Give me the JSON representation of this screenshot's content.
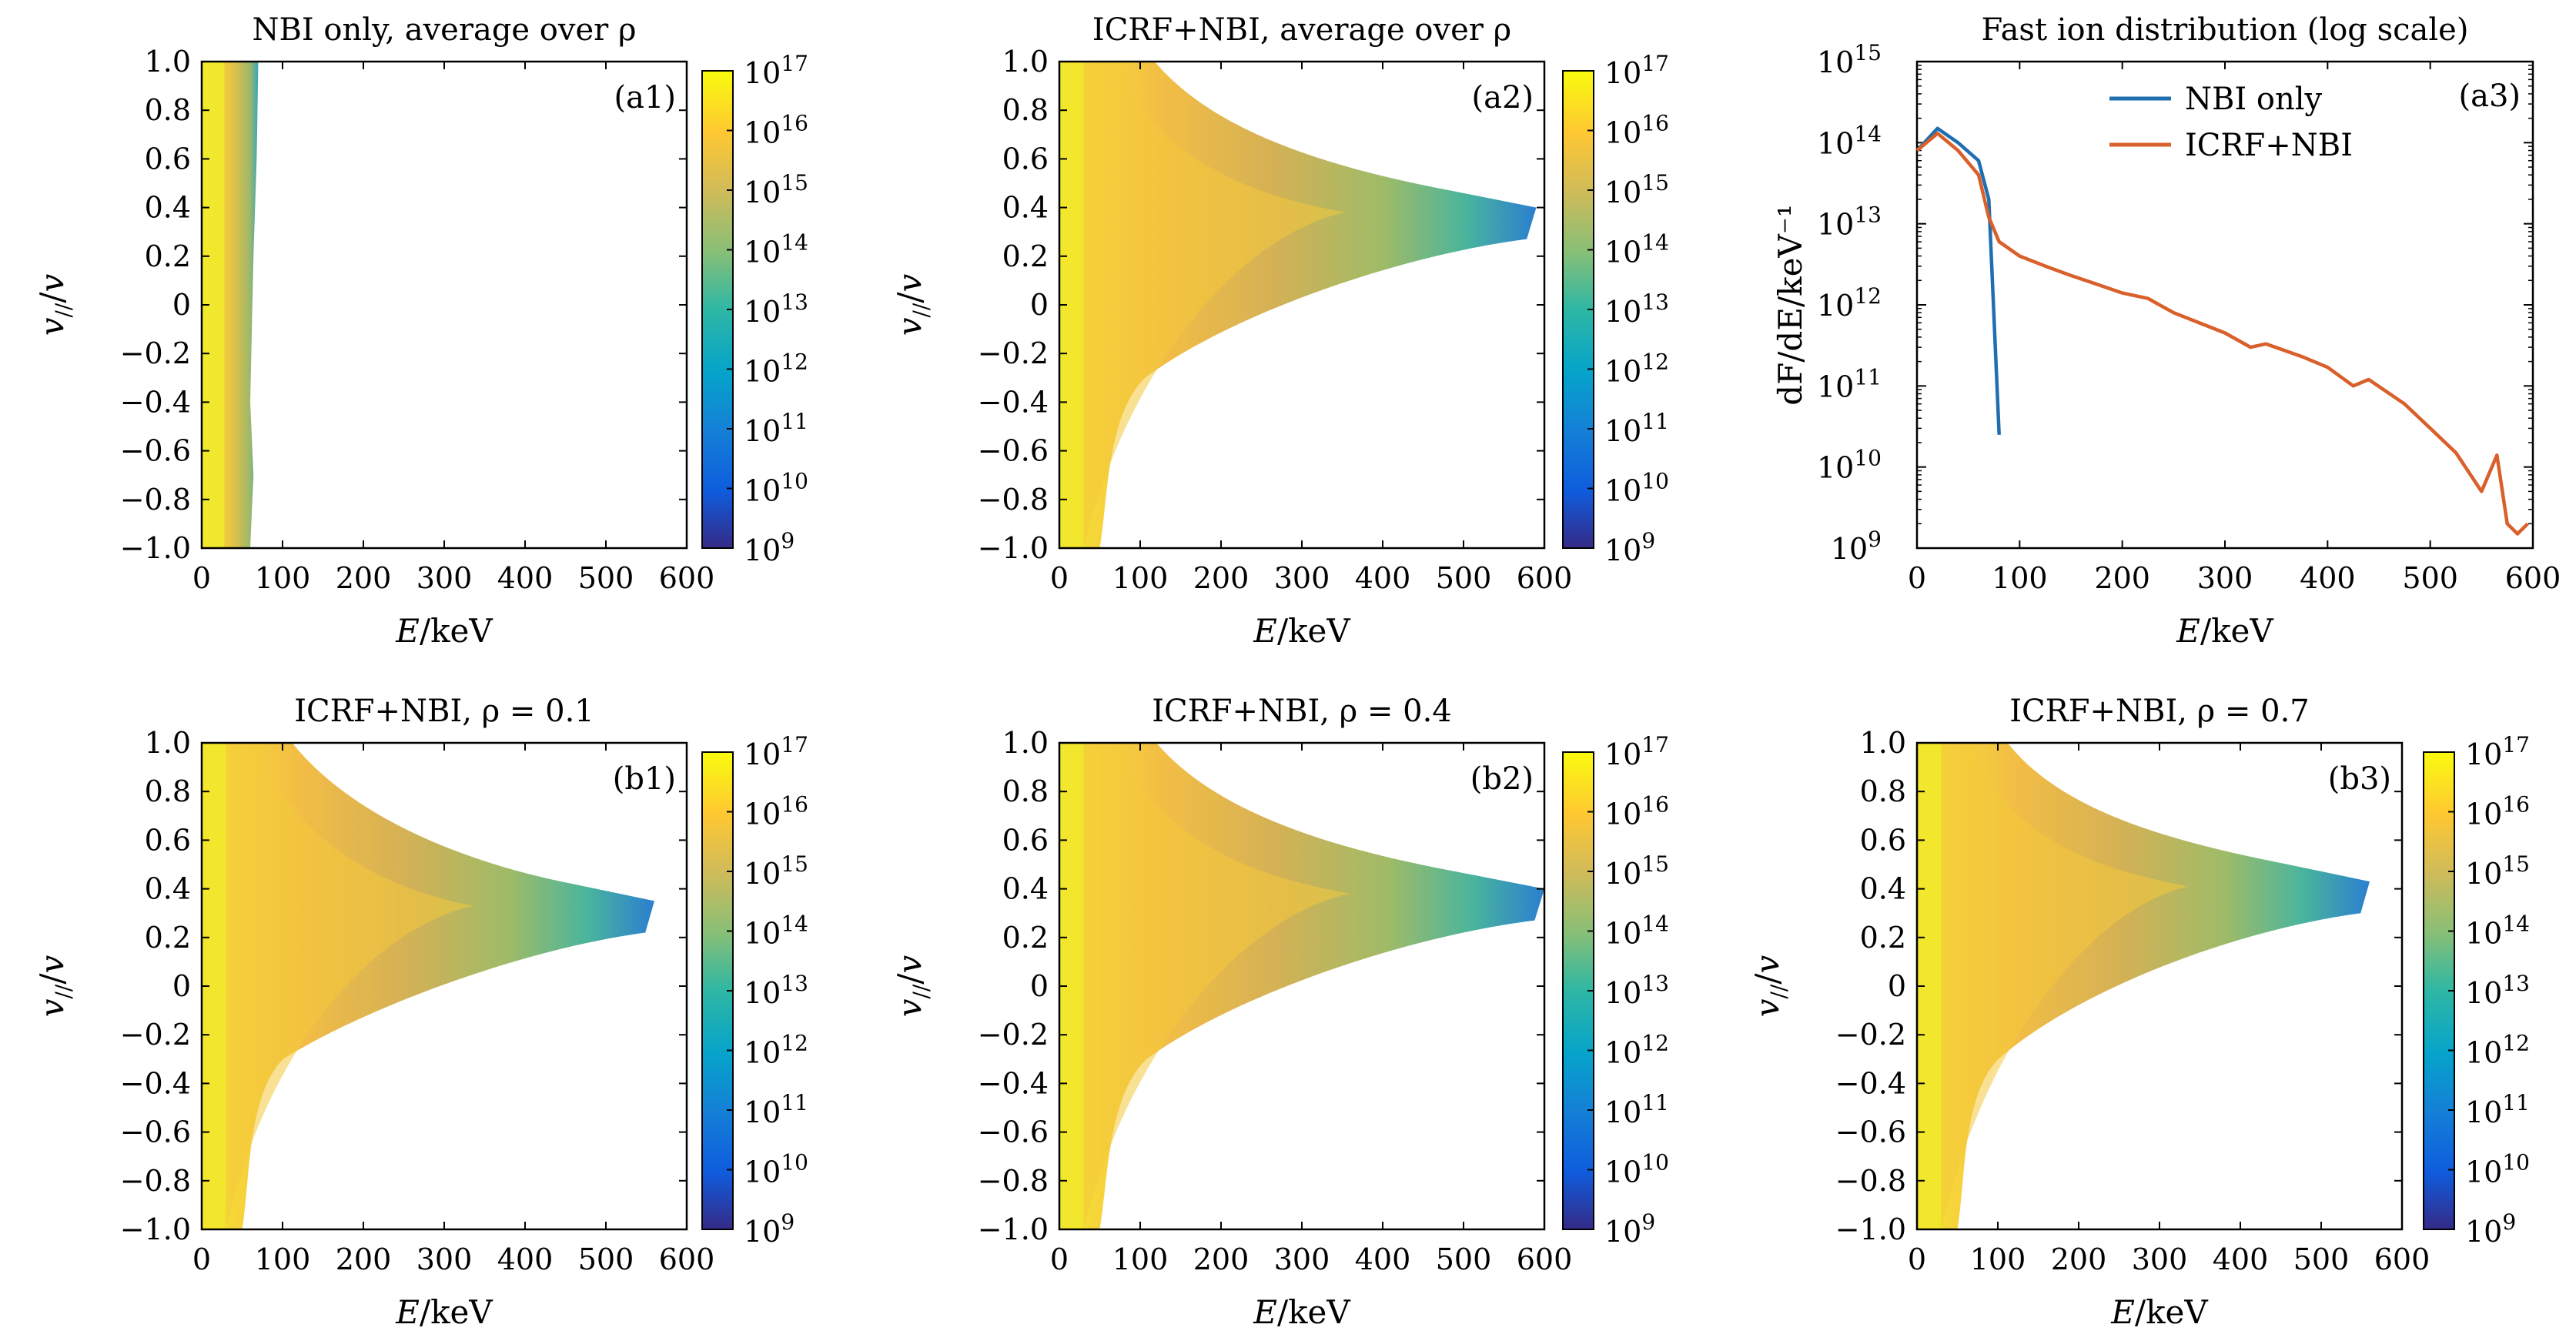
{
  "colors": {
    "colormap": [
      "#352a87",
      "#0f5cdd",
      "#1481d6",
      "#06a4ca",
      "#2eb7a4",
      "#87bf77",
      "#d1bb59",
      "#fec832",
      "#f9fb0e"
    ],
    "nbi_line": "#1f6fb0",
    "icrf_line": "#d95f2b"
  },
  "chart_data": [
    {
      "id": "a1",
      "type": "heatmap",
      "title": "NBI only, average over ρ",
      "panel_label": "(a1)",
      "xlabel": "E/keV",
      "ylabel": "v_{//}/v",
      "xlim": [
        0,
        600
      ],
      "ylim": [
        -1.0,
        1.0
      ],
      "x_ticks": [
        "0",
        "100",
        "200",
        "300",
        "400",
        "500",
        "600"
      ],
      "y_ticks": [
        "−1.0",
        "−0.8",
        "−0.6",
        "−0.4",
        "−0.2",
        "0",
        "0.2",
        "0.4",
        "0.6",
        "0.8",
        "1.0"
      ],
      "colorbar_ticks": [
        "10",
        "10",
        "10",
        "10",
        "10",
        "10",
        "10",
        "10",
        "10"
      ],
      "colorbar_exponents": [
        "9",
        "10",
        "11",
        "12",
        "13",
        "14",
        "15",
        "16",
        "17"
      ],
      "colorbar_range": [
        9,
        17
      ],
      "region_extent_keV": [
        {
          "v": -1.0,
          "e": 60
        },
        {
          "v": 0.0,
          "e": 60
        },
        {
          "v": 1.0,
          "e": 70
        }
      ]
    },
    {
      "id": "a2",
      "type": "heatmap",
      "title": "ICRF+NBI, average over ρ",
      "panel_label": "(a2)",
      "xlabel": "E/keV",
      "ylabel": "v_{//}/v",
      "xlim": [
        0,
        600
      ],
      "ylim": [
        -1.0,
        1.0
      ],
      "x_ticks": [
        "0",
        "100",
        "200",
        "300",
        "400",
        "500",
        "600"
      ],
      "y_ticks": [
        "−1.0",
        "−0.8",
        "−0.6",
        "−0.4",
        "−0.2",
        "0",
        "0.2",
        "0.4",
        "0.6",
        "0.8",
        "1.0"
      ],
      "colorbar_ticks": [
        "10",
        "10",
        "10",
        "10",
        "10",
        "10",
        "10",
        "10",
        "10"
      ],
      "colorbar_exponents": [
        "9",
        "10",
        "11",
        "12",
        "13",
        "14",
        "15",
        "16",
        "17"
      ],
      "colorbar_range": [
        9,
        17
      ],
      "tail_tip_keV": 590,
      "tail_center_v": 0.35
    },
    {
      "id": "a3",
      "type": "line",
      "title": "Fast ion distribution (log scale)",
      "panel_label": "(a3)",
      "xlabel": "E/keV",
      "ylabel": "dF/dE/keV⁻¹",
      "xlim": [
        0,
        600
      ],
      "ylim_log10": [
        9,
        15
      ],
      "x_ticks": [
        "0",
        "100",
        "200",
        "300",
        "400",
        "500",
        "600"
      ],
      "y_ticks_base": [
        "10",
        "10",
        "10",
        "10",
        "10",
        "10",
        "10"
      ],
      "y_ticks_exponents": [
        "9",
        "10",
        "11",
        "12",
        "13",
        "14",
        "15"
      ],
      "legend_position": "top-right",
      "series": [
        {
          "name": "NBI only",
          "x": [
            0,
            20,
            40,
            60,
            70,
            80
          ],
          "y": [
            80000000000000.0,
            150000000000000.0,
            100000000000000.0,
            60000000000000.0,
            20000000000000.0,
            25000000000.0
          ]
        },
        {
          "name": "ICRF+NBI",
          "x": [
            0,
            20,
            40,
            60,
            70,
            80,
            100,
            125,
            150,
            175,
            200,
            225,
            250,
            275,
            300,
            325,
            340,
            375,
            400,
            425,
            440,
            475,
            500,
            525,
            550,
            565,
            575,
            585,
            595
          ],
          "y": [
            80000000000000.0,
            130000000000000.0,
            80000000000000.0,
            40000000000000.0,
            12000000000000.0,
            6000000000000.0,
            4000000000000.0,
            3000000000000.0,
            2300000000000.0,
            1800000000000.0,
            1400000000000.0,
            1200000000000.0,
            800000000000.0,
            600000000000.0,
            450000000000.0,
            300000000000.0,
            330000000000.0,
            230000000000.0,
            170000000000.0,
            100000000000.0,
            120000000000.0,
            60000000000.0,
            30000000000.0,
            15000000000.0,
            5000000000.0,
            14000000000.0,
            2000000000.0,
            1500000000.0,
            2000000000.0
          ]
        }
      ]
    },
    {
      "id": "b1",
      "type": "heatmap",
      "title": "ICRF+NBI, ρ = 0.1",
      "panel_label": "(b1)",
      "xlabel": "E/keV",
      "ylabel": "v_{//}/v",
      "xlim": [
        0,
        600
      ],
      "ylim": [
        -1.0,
        1.0
      ],
      "x_ticks": [
        "0",
        "100",
        "200",
        "300",
        "400",
        "500",
        "600"
      ],
      "y_ticks": [
        "−1.0",
        "−0.8",
        "−0.6",
        "−0.4",
        "−0.2",
        "0",
        "0.2",
        "0.4",
        "0.6",
        "0.8",
        "1.0"
      ],
      "colorbar_ticks": [
        "10",
        "10",
        "10",
        "10",
        "10",
        "10",
        "10",
        "10",
        "10"
      ],
      "colorbar_exponents": [
        "9",
        "10",
        "11",
        "12",
        "13",
        "14",
        "15",
        "16",
        "17"
      ],
      "colorbar_range": [
        9,
        17
      ],
      "tail_tip_keV": 560,
      "tail_center_v": 0.3
    },
    {
      "id": "b2",
      "type": "heatmap",
      "title": "ICRF+NBI, ρ = 0.4",
      "panel_label": "(b2)",
      "xlabel": "E/keV",
      "ylabel": "v_{//}/v",
      "xlim": [
        0,
        600
      ],
      "ylim": [
        -1.0,
        1.0
      ],
      "x_ticks": [
        "0",
        "100",
        "200",
        "300",
        "400",
        "500",
        "600"
      ],
      "y_ticks": [
        "−1.0",
        "−0.8",
        "−0.6",
        "−0.4",
        "−0.2",
        "0",
        "0.2",
        "0.4",
        "0.6",
        "0.8",
        "1.0"
      ],
      "colorbar_ticks": [
        "10",
        "10",
        "10",
        "10",
        "10",
        "10",
        "10",
        "10",
        "10"
      ],
      "colorbar_exponents": [
        "9",
        "10",
        "11",
        "12",
        "13",
        "14",
        "15",
        "16",
        "17"
      ],
      "colorbar_range": [
        9,
        17
      ],
      "tail_tip_keV": 600,
      "tail_center_v": 0.35
    },
    {
      "id": "b3",
      "type": "heatmap",
      "title": "ICRF+NBI, ρ = 0.7",
      "panel_label": "(b3)",
      "xlabel": "E/keV",
      "ylabel": "v_{//}/v",
      "xlim": [
        0,
        600
      ],
      "ylim": [
        -1.0,
        1.0
      ],
      "x_ticks": [
        "0",
        "100",
        "200",
        "300",
        "400",
        "500",
        "600"
      ],
      "y_ticks": [
        "−1.0",
        "−0.8",
        "−0.6",
        "−0.4",
        "−0.2",
        "0",
        "0.2",
        "0.4",
        "0.6",
        "0.8",
        "1.0"
      ],
      "colorbar_ticks": [
        "10",
        "10",
        "10",
        "10",
        "10",
        "10",
        "10",
        "10",
        "10"
      ],
      "colorbar_exponents": [
        "9",
        "10",
        "11",
        "12",
        "13",
        "14",
        "15",
        "16",
        "17"
      ],
      "colorbar_range": [
        9,
        17
      ],
      "tail_tip_keV": 560,
      "tail_center_v": 0.38
    }
  ]
}
